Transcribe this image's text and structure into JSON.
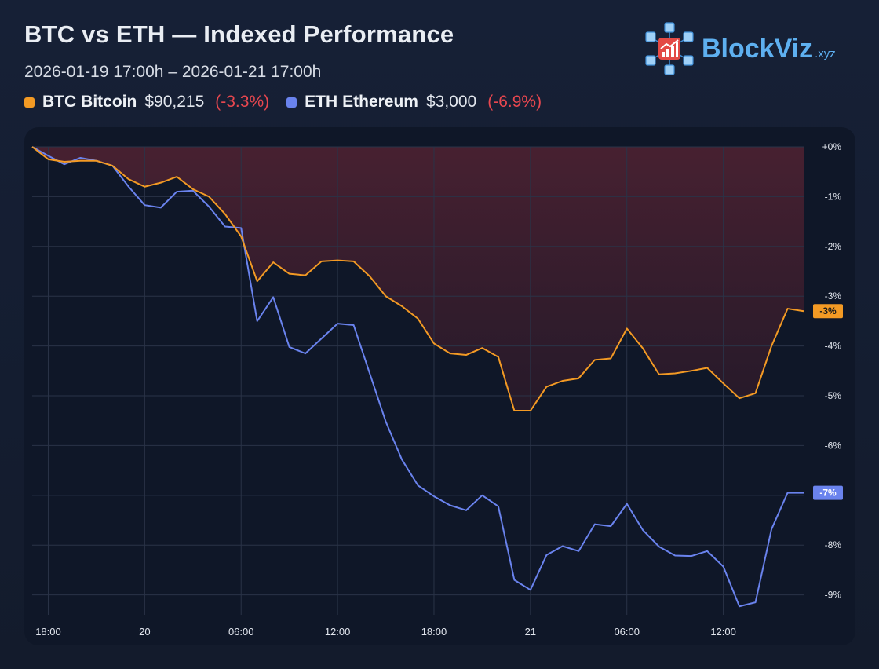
{
  "header": {
    "title": "BTC vs ETH — Indexed Performance",
    "subtitle": "2026-01-19 17:00h – 2026-01-21 17:00h"
  },
  "legend": [
    {
      "symbol": "BTC",
      "name": "Bitcoin",
      "price": "$90,215",
      "change": "(-3.3%)",
      "color": "#f39a24"
    },
    {
      "symbol": "ETH",
      "name": "Ethereum",
      "price": "$3,000",
      "change": "(-6.9%)",
      "color": "#6a83ee"
    }
  ],
  "brand": {
    "name": "BlockViz",
    "tld": ".xyz",
    "accent": "#5eb0f0",
    "icon": "blockchain-cubes-icon"
  },
  "colors": {
    "negative": "#e8474f",
    "fill": "#3e1f2e",
    "grid": "#2a3347"
  },
  "chart_data": {
    "type": "line",
    "title": "BTC vs ETH — Indexed Performance",
    "xlabel": "",
    "ylabel": "",
    "ylim": [
      -9.4,
      0
    ],
    "xlim": [
      0,
      48
    ],
    "x_unit": "hours since 2026-01-19 17:00",
    "x_ticks": [
      {
        "x": 1,
        "label": "18:00"
      },
      {
        "x": 7,
        "label": "20"
      },
      {
        "x": 13,
        "label": "06:00"
      },
      {
        "x": 19,
        "label": "12:00"
      },
      {
        "x": 25,
        "label": "18:00"
      },
      {
        "x": 31,
        "label": "21"
      },
      {
        "x": 37,
        "label": "06:00"
      },
      {
        "x": 43,
        "label": "12:00"
      }
    ],
    "y_ticks": [
      {
        "value": 0,
        "label": "+0%"
      },
      {
        "value": -1,
        "label": "-1%"
      },
      {
        "value": -2,
        "label": "-2%"
      },
      {
        "value": -3,
        "label": "-3%"
      },
      {
        "value": -4,
        "label": "-4%"
      },
      {
        "value": -5,
        "label": "-5%"
      },
      {
        "value": -6,
        "label": "-6%"
      },
      {
        "value": -7,
        "label": "-7%"
      },
      {
        "value": -8,
        "label": "-8%"
      },
      {
        "value": -9,
        "label": "-9%"
      }
    ],
    "series": [
      {
        "name": "BTC",
        "color": "#f39a24",
        "end_label": "-3%",
        "x": [
          0,
          1,
          2,
          3,
          4,
          5,
          6,
          7,
          8,
          9,
          10,
          11,
          12,
          13,
          14,
          15,
          16,
          17,
          18,
          19,
          20,
          21,
          22,
          23,
          24,
          25,
          26,
          27,
          28,
          29,
          30,
          31,
          32,
          33,
          34,
          35,
          36,
          37,
          38,
          39,
          40,
          41,
          42,
          43,
          44,
          45,
          46,
          47,
          48
        ],
        "values": [
          0,
          -0.25,
          -0.3,
          -0.28,
          -0.28,
          -0.38,
          -0.65,
          -0.8,
          -0.72,
          -0.6,
          -0.85,
          -1.0,
          -1.35,
          -1.8,
          -2.7,
          -2.32,
          -2.55,
          -2.58,
          -2.3,
          -2.28,
          -2.3,
          -2.6,
          -3.0,
          -3.2,
          -3.45,
          -3.95,
          -4.15,
          -4.18,
          -4.04,
          -4.22,
          -5.3,
          -5.3,
          -4.82,
          -4.7,
          -4.65,
          -4.28,
          -4.25,
          -3.65,
          -4.05,
          -4.57,
          -4.55,
          -4.5,
          -4.44,
          -4.75,
          -5.05,
          -4.95,
          -4.0,
          -3.25,
          -3.3
        ]
      },
      {
        "name": "ETH",
        "color": "#6a83ee",
        "end_label": "-7%",
        "x": [
          0,
          1,
          2,
          3,
          4,
          5,
          6,
          7,
          8,
          9,
          10,
          11,
          12,
          13,
          14,
          15,
          16,
          17,
          18,
          19,
          20,
          21,
          22,
          23,
          24,
          25,
          26,
          27,
          28,
          29,
          30,
          31,
          32,
          33,
          34,
          35,
          36,
          37,
          38,
          39,
          40,
          41,
          42,
          43,
          44,
          45,
          46,
          47,
          48
        ],
        "values": [
          0,
          -0.18,
          -0.35,
          -0.22,
          -0.28,
          -0.38,
          -0.8,
          -1.17,
          -1.22,
          -0.9,
          -0.88,
          -1.2,
          -1.6,
          -1.63,
          -3.5,
          -3.02,
          -4.02,
          -4.15,
          -3.85,
          -3.55,
          -3.58,
          -4.55,
          -5.52,
          -6.28,
          -6.8,
          -7.02,
          -7.2,
          -7.3,
          -7.0,
          -7.22,
          -8.7,
          -8.9,
          -8.2,
          -8.02,
          -8.12,
          -7.58,
          -7.62,
          -7.17,
          -7.7,
          -8.03,
          -8.21,
          -8.22,
          -8.12,
          -8.43,
          -9.23,
          -9.15,
          -7.68,
          -6.95,
          -6.95
        ]
      }
    ]
  }
}
